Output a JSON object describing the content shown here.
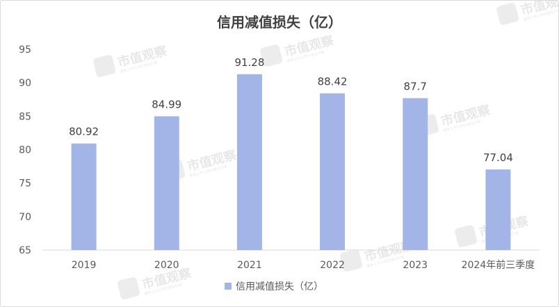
{
  "chart_data": {
    "type": "bar",
    "title": "信用减值损失（亿）",
    "categories": [
      "2019",
      "2020",
      "2021",
      "2022",
      "2023",
      "2024年前三季度"
    ],
    "series": [
      {
        "name": "信用减值损失（亿）",
        "values": [
          80.92,
          84.99,
          91.28,
          88.42,
          87.7,
          77.04
        ]
      }
    ],
    "data_labels": [
      "80.92",
      "84.99",
      "91.28",
      "88.42",
      "87.7",
      "77.04"
    ],
    "yticks": [
      "65",
      "70",
      "75",
      "80",
      "85",
      "90",
      "95"
    ],
    "ylim": [
      65,
      95
    ],
    "xlabel": "",
    "ylabel": "",
    "grid": false,
    "legend_position": "bottom",
    "bar_color": "#a3b5e6"
  },
  "watermark": {
    "text": "市值观察",
    "subtext": "聚焦上市公司价值与价格"
  }
}
